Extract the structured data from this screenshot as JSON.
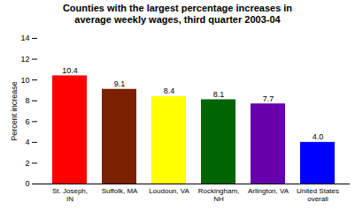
{
  "chart_data": {
    "type": "bar",
    "title": "Counties with the largest percentage increases in\naverage weekly wages, third quarter 2003-04",
    "categories": [
      "St. Joseph,\nIN",
      "Suffolk, MA",
      "Loudoun, VA",
      "Rockingham,\nNH",
      "Arlington, VA",
      "United States\noverall"
    ],
    "values": [
      10.4,
      9.1,
      8.4,
      8.1,
      7.7,
      4.0
    ],
    "value_labels": [
      "10.4",
      "9.1",
      "8.4",
      "8.1",
      "7.7",
      "4.0"
    ],
    "colors": [
      "#ff0000",
      "#7b2000",
      "#ffff00",
      "#006400",
      "#6600aa",
      "#0000ff"
    ],
    "ylabel": "Percent increase",
    "ylim": [
      0,
      14
    ],
    "yticks": [
      0,
      2,
      4,
      6,
      8,
      10,
      12,
      14
    ],
    "grid": false,
    "data_labels": true
  }
}
